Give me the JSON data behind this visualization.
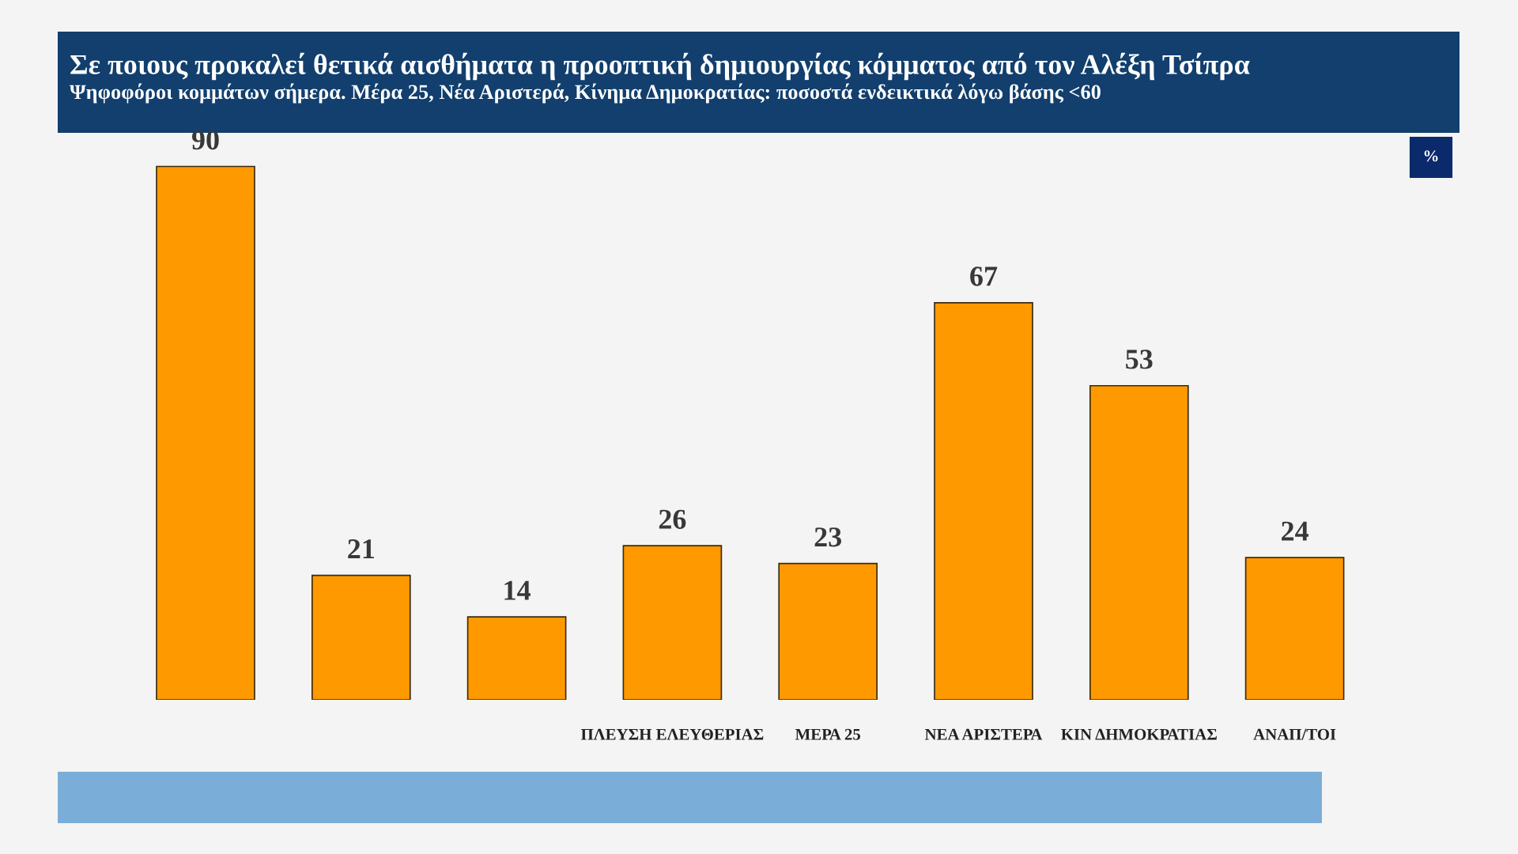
{
  "chart_data": {
    "type": "bar",
    "title": "Σε ποιους προκαλεί θετικά αισθήματα η προοπτική δημιουργίας κόμματος από τον Αλέξη Τσίπρα",
    "subtitle": "Ψηφοφόροι κομμάτων σήμερα. Μέρα 25, Νέα Αριστερά, Κίνημα Δημοκρατίας: ποσοστά ενδεικτικά λόγω βάσης <60",
    "categories": [
      null,
      null,
      null,
      "ΠΛΕΥΣΗ ΕΛΕΥΘΕΡΙΑΣ",
      "ΜΕΡΑ 25",
      "ΝΕΑ ΑΡΙΣΤΕΡΑ",
      "ΚΙΝ ΔΗΜΟΚΡΑΤΙΑΣ",
      "ΑΝΑΠ/ΤΟΙ"
    ],
    "values": [
      90,
      21,
      14,
      26,
      23,
      67,
      53,
      24
    ],
    "color": "#ff9900",
    "data_labels": true,
    "tick_labels": "x",
    "annotations": [
      "%"
    ]
  }
}
